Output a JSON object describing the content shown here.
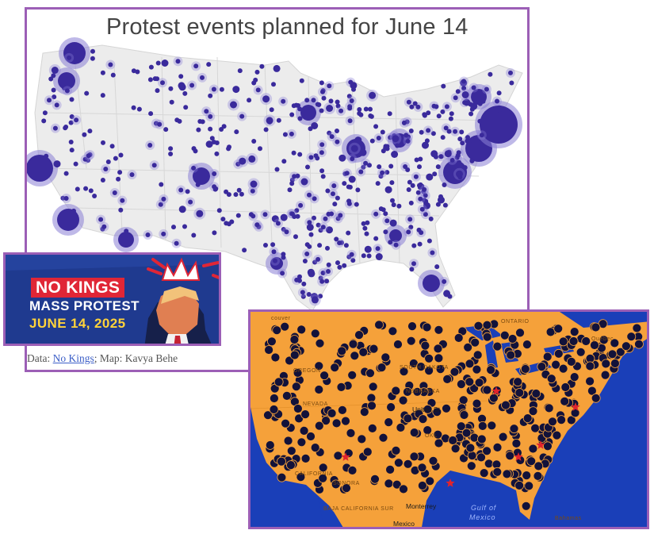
{
  "map1": {
    "title": "Protest events planned for June 14",
    "caption_prefix": "Data: ",
    "caption_link": "No Kings",
    "caption_suffix": "; Map: Kavya Behe",
    "marker_color": "#3a2a9c",
    "halo_color": "#8a7fd6",
    "land_color": "#ececec"
  },
  "banner": {
    "line1": "NO KINGS",
    "line2": "MASS PROTEST",
    "line3": "JUNE 14, 2025",
    "background": "#1f3a8f",
    "accent_red": "#e02636",
    "accent_yellow": "#ffd33a"
  },
  "map2": {
    "marker_color": "#12123a",
    "star_color": "#e0242c",
    "land_color": "#f5a13a",
    "water_color": "#1a3fb8",
    "labels": {
      "ontario": "ONTARIO",
      "quebec": "Québec",
      "oregon": "OREGON",
      "nevada": "NEVADA",
      "south_dakota": "SOUTH DAKOTA",
      "nebraska": "NEBRASKA",
      "united_states": "United St",
      "oklahoma": "OKL",
      "california": "CALIFORNIA",
      "sonora": "SONORA",
      "baja": "BAJA CALIFORNIA SUR",
      "monterrey": "Monterrey",
      "mexico": "Mexico",
      "gulf1": "Gulf of",
      "gulf2": "Mexico",
      "bahamas": "Bahamas",
      "vancouver": "couver"
    }
  }
}
